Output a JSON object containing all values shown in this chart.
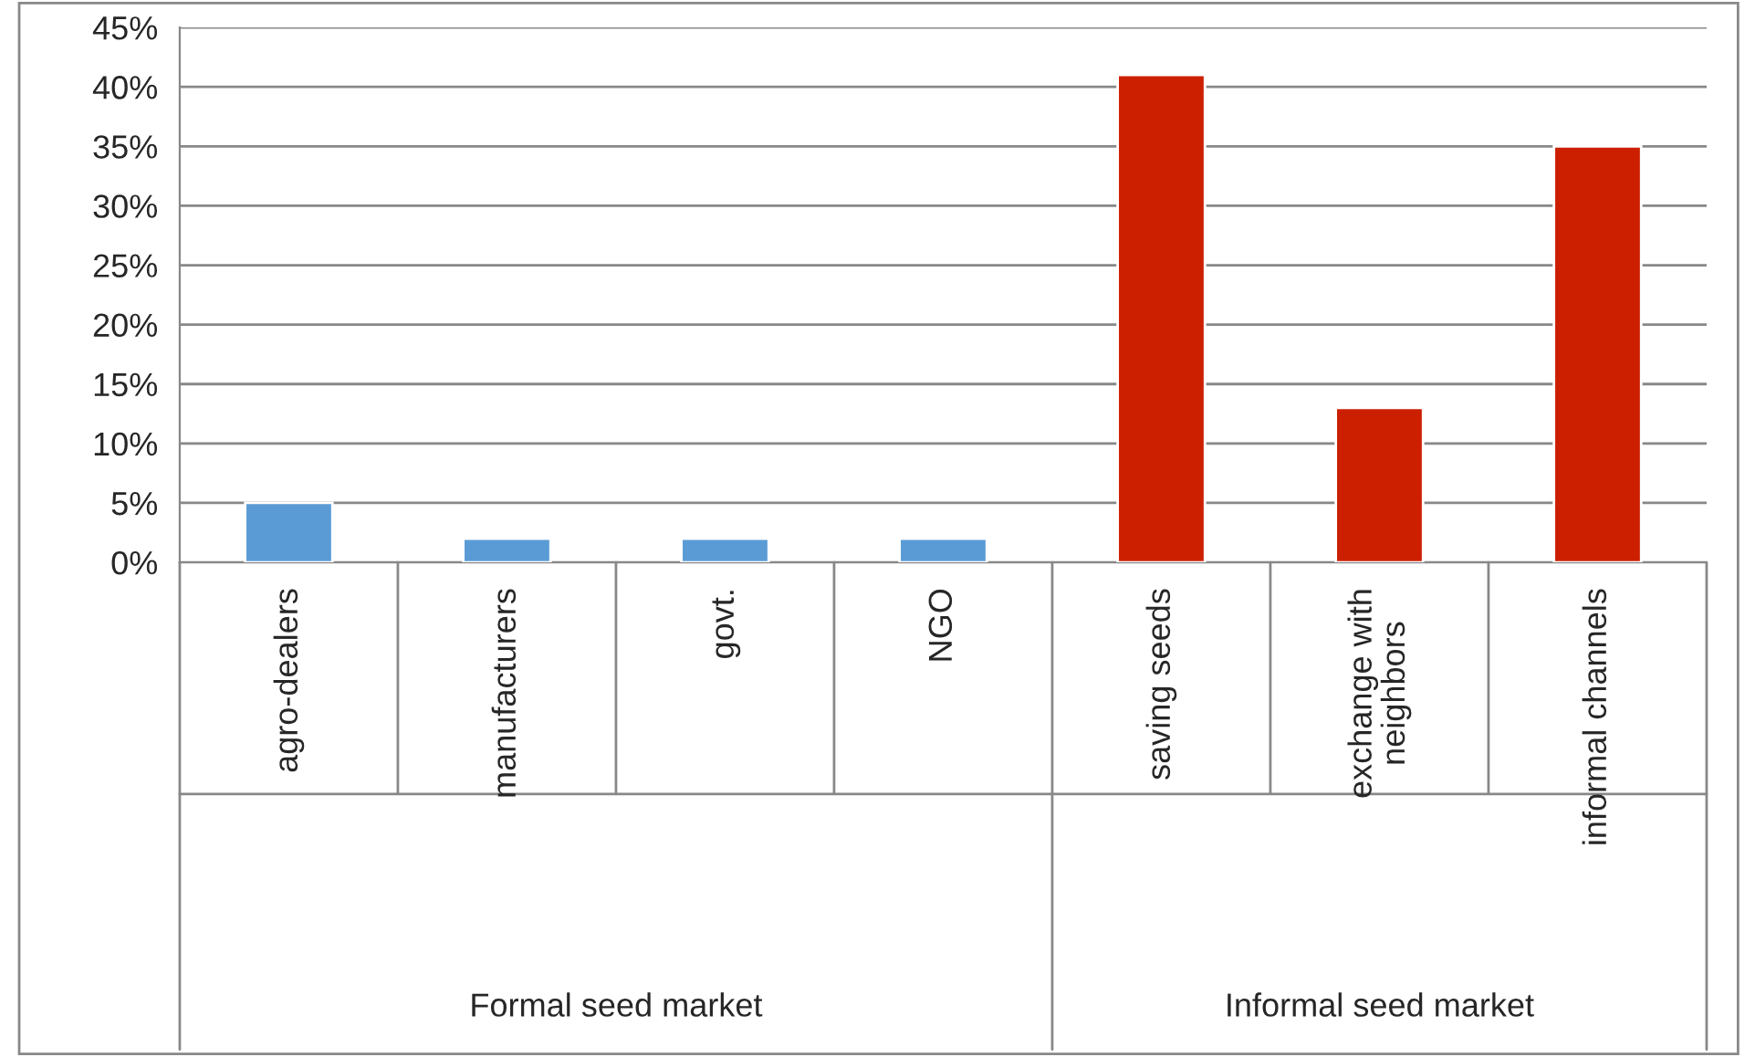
{
  "chart_data": {
    "type": "bar",
    "categories": [
      "agro-dealers",
      "manufacturers",
      "govt.",
      "NGO",
      "saving seeds",
      "exchange with\nneighbors",
      "informal channels"
    ],
    "values": [
      5,
      2,
      2,
      2,
      41,
      13,
      35
    ],
    "colors": [
      "#5b9bd5",
      "#5b9bd5",
      "#5b9bd5",
      "#5b9bd5",
      "#cc1f00",
      "#cc1f00",
      "#cc1f00"
    ],
    "ylim": [
      0,
      45
    ],
    "yticks": [
      {
        "value": 0,
        "label": "0%"
      },
      {
        "value": 5,
        "label": "5%"
      },
      {
        "value": 10,
        "label": "10%"
      },
      {
        "value": 15,
        "label": "15%"
      },
      {
        "value": 20,
        "label": "20%"
      },
      {
        "value": 25,
        "label": "25%"
      },
      {
        "value": 30,
        "label": "30%"
      },
      {
        "value": 35,
        "label": "35%"
      },
      {
        "value": 40,
        "label": "40%"
      },
      {
        "value": 45,
        "label": "45%"
      }
    ],
    "grid": "y",
    "legend": false,
    "annotations": [
      "Formal seed market",
      "Informal seed market"
    ]
  }
}
